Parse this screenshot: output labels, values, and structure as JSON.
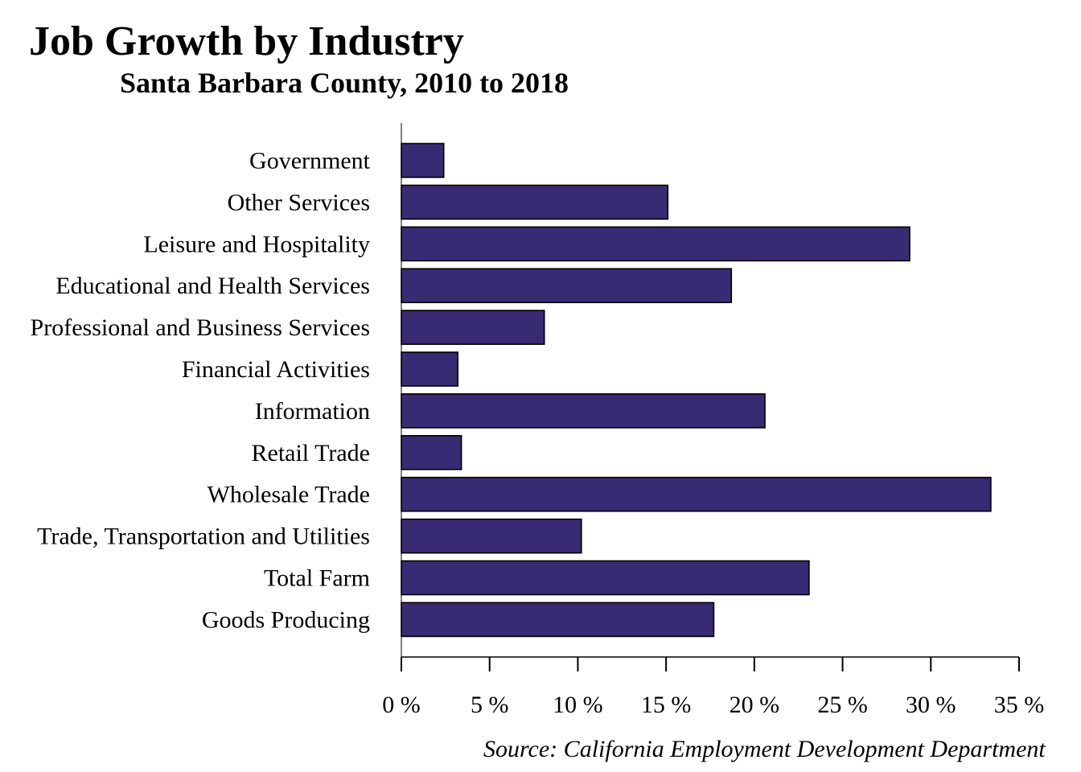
{
  "chart_data": {
    "type": "bar",
    "orientation": "horizontal",
    "title": "Job Growth by Industry",
    "subtitle": "Santa Barbara County, 2010 to 2018",
    "categories": [
      "Government",
      "Other Services",
      "Leisure and Hospitality",
      "Educational and Health Services",
      "Professional and Business Services",
      "Financial Activities",
      "Information",
      "Retail Trade",
      "Wholesale Trade",
      "Trade, Transportation and Utilities",
      "Total Farm",
      "Goods Producing"
    ],
    "values": [
      2.4,
      15.1,
      28.8,
      18.7,
      8.1,
      3.2,
      20.6,
      3.4,
      33.4,
      10.2,
      23.1,
      17.7
    ],
    "xlim": [
      0,
      35
    ],
    "xticks": [
      0,
      5,
      10,
      15,
      20,
      25,
      30,
      35
    ],
    "xtick_labels": [
      "0 %",
      "5 %",
      "10 %",
      "15 %",
      "20 %",
      "25 %",
      "30 %",
      "35 %"
    ],
    "xlabel": "",
    "ylabel": "",
    "grid": false,
    "legend": "none",
    "bar_color": "#392a74",
    "bar_edge_color": "#000000",
    "source": "Source: California Employment Development Department"
  }
}
